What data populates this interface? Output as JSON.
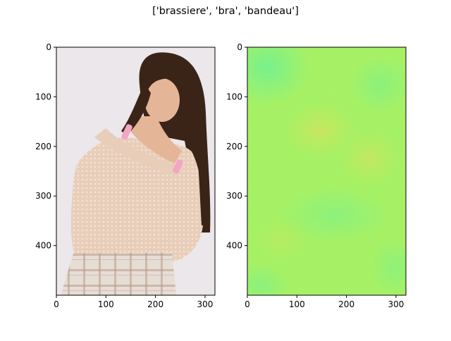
{
  "figure": {
    "title": "['brassiere', 'bra', 'bandeau']"
  },
  "panels": [
    {
      "kind": "photo",
      "x_ticks": [
        "0",
        "100",
        "200",
        "300"
      ],
      "y_ticks": [
        "0",
        "100",
        "200",
        "300",
        "400"
      ],
      "x_tick_values": [
        0,
        100,
        200,
        300
      ],
      "y_tick_values": [
        0,
        100,
        200,
        300,
        400
      ],
      "x_range": [
        0,
        320
      ],
      "y_range": [
        0,
        500
      ],
      "colors": {
        "background": "#ebe7ea",
        "hair": "#3a2418",
        "skin": "#e4b596",
        "sweater": "#e8cdb9",
        "skirt": "#e6ddd4",
        "plaid": "#b59a8a",
        "strap": "#f2a6c4"
      }
    },
    {
      "kind": "heatmap",
      "x_ticks": [
        "0",
        "100",
        "200",
        "300"
      ],
      "y_ticks": [
        "0",
        "100",
        "200",
        "300",
        "400"
      ],
      "x_tick_values": [
        0,
        100,
        200,
        300
      ],
      "y_tick_values": [
        0,
        100,
        200,
        300,
        400
      ],
      "x_range": [
        0,
        320
      ],
      "y_range": [
        0,
        500
      ],
      "colors": {
        "base": "#a9ee3c",
        "cool": "#58ee80",
        "warm": "#d1e52e",
        "hot": "#e1dc32"
      }
    }
  ]
}
